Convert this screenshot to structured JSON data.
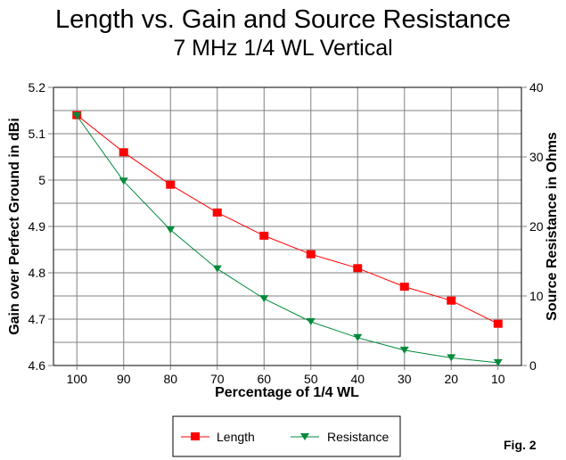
{
  "chart_data": {
    "type": "line",
    "title": "Length vs. Gain and Source Resistance",
    "subtitle": "7 MHz 1/4 WL Vertical",
    "xlabel": "Percentage of 1/4 WL",
    "ylabel": "Gain over Perfect Ground in dBi",
    "y2label": "Source Resistance in Ohms",
    "x": [
      100,
      90,
      80,
      70,
      60,
      50,
      40,
      30,
      20,
      10
    ],
    "x_tick_labels": [
      "100",
      "90",
      "80",
      "70",
      "60",
      "50",
      "40",
      "30",
      "20",
      "10"
    ],
    "ylim": [
      4.6,
      5.2
    ],
    "y_tick_labels": [
      "4.6",
      "4.7",
      "4.8",
      "4.9",
      "5",
      "5.1",
      "5.2"
    ],
    "y2lim": [
      0,
      40
    ],
    "y2_tick_labels": [
      "0",
      "10",
      "20",
      "30",
      "40"
    ],
    "grid": true,
    "legend_position": "bottom-center",
    "series": [
      {
        "name": "Length",
        "axis": "left",
        "color": "#ff0000",
        "marker": "square",
        "values": [
          5.14,
          5.06,
          4.99,
          4.93,
          4.88,
          4.84,
          4.81,
          4.77,
          4.74,
          4.69
        ]
      },
      {
        "name": "Resistance",
        "axis": "right",
        "color": "#008a3a",
        "marker": "triangle-down",
        "values": [
          35.9,
          26.5,
          19.5,
          13.9,
          9.6,
          6.3,
          4.0,
          2.2,
          1.1,
          0.4
        ]
      }
    ],
    "annotation": "Fig. 2"
  }
}
